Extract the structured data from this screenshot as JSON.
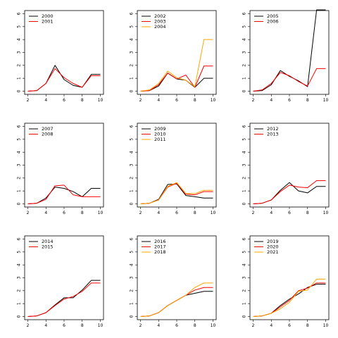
{
  "chart_data": [
    {
      "type": "line",
      "xlim": [
        2,
        10
      ],
      "ylim": [
        0,
        6
      ],
      "xticks": [
        "2",
        "4",
        "6",
        "8",
        "10"
      ],
      "yticks": [
        "0",
        "1",
        "2",
        "3",
        "4",
        "5",
        "6"
      ],
      "legend": "top-left",
      "series": [
        {
          "name": "2000",
          "color": "#000000",
          "x": [
            2,
            3,
            4,
            5,
            6,
            7,
            8,
            9,
            10
          ],
          "y": [
            0,
            0.05,
            0.6,
            2.0,
            0.9,
            0.45,
            0.3,
            1.3,
            1.3
          ]
        },
        {
          "name": "2001",
          "color": "#ff0000",
          "x": [
            2,
            3,
            4,
            5,
            6,
            7,
            8,
            9,
            10
          ],
          "y": [
            0,
            0.05,
            0.6,
            1.75,
            1.05,
            0.6,
            0.3,
            1.2,
            1.2
          ]
        }
      ]
    },
    {
      "type": "line",
      "xlim": [
        2,
        10
      ],
      "ylim": [
        0,
        6
      ],
      "xticks": [
        "2",
        "4",
        "6",
        "8",
        "10"
      ],
      "yticks": [
        "0",
        "1",
        "2",
        "3",
        "4",
        "5",
        "6"
      ],
      "legend": "top-left",
      "series": [
        {
          "name": "2002",
          "color": "#000000",
          "x": [
            2,
            3,
            4,
            5,
            6,
            7,
            8,
            9,
            10
          ],
          "y": [
            0,
            0.05,
            0.4,
            1.4,
            0.95,
            0.85,
            0.3,
            1.0,
            1.0
          ]
        },
        {
          "name": "2003",
          "color": "#ff0000",
          "x": [
            2,
            3,
            4,
            5,
            6,
            7,
            8,
            9,
            10
          ],
          "y": [
            0,
            0.05,
            0.5,
            1.4,
            0.95,
            1.25,
            0.3,
            1.95,
            1.95
          ]
        },
        {
          "name": "2004",
          "color": "#ffa500",
          "x": [
            2,
            3,
            4,
            5,
            6,
            7,
            8,
            9,
            10
          ],
          "y": [
            0,
            0.1,
            0.6,
            1.55,
            1.05,
            0.85,
            0.35,
            4.0,
            4.0
          ]
        }
      ]
    },
    {
      "type": "line",
      "xlim": [
        2,
        10
      ],
      "ylim": [
        0,
        6
      ],
      "xticks": [
        "2",
        "4",
        "6",
        "8",
        "10"
      ],
      "yticks": [
        "0",
        "1",
        "2",
        "3",
        "4",
        "5",
        "6"
      ],
      "legend": "top-left",
      "series": [
        {
          "name": "2005",
          "color": "#000000",
          "x": [
            2,
            3,
            4,
            5,
            6,
            7,
            8,
            9,
            10
          ],
          "y": [
            0,
            0.05,
            0.5,
            1.6,
            1.15,
            0.8,
            0.35,
            6.3,
            6.3
          ]
        },
        {
          "name": "2006",
          "color": "#ff0000",
          "x": [
            2,
            3,
            4,
            5,
            6,
            7,
            8,
            9,
            10
          ],
          "y": [
            0,
            0.1,
            0.6,
            1.45,
            1.2,
            0.75,
            0.4,
            1.75,
            1.75
          ]
        }
      ]
    },
    {
      "type": "line",
      "xlim": [
        2,
        10
      ],
      "ylim": [
        0,
        6
      ],
      "xticks": [
        "2",
        "4",
        "6",
        "8",
        "10"
      ],
      "yticks": [
        "0",
        "1",
        "2",
        "3",
        "4",
        "5",
        "6"
      ],
      "legend": "top-left",
      "series": [
        {
          "name": "2007",
          "color": "#000000",
          "x": [
            2,
            3,
            4,
            5,
            6,
            7,
            8,
            9,
            10
          ],
          "y": [
            0,
            0.05,
            0.45,
            1.3,
            1.2,
            0.95,
            0.55,
            1.2,
            1.2
          ]
        },
        {
          "name": "2008",
          "color": "#ff0000",
          "x": [
            2,
            3,
            4,
            5,
            6,
            7,
            8,
            9,
            10
          ],
          "y": [
            0,
            0.05,
            0.35,
            1.4,
            1.45,
            0.7,
            0.55,
            0.55,
            0.55
          ]
        }
      ]
    },
    {
      "type": "line",
      "xlim": [
        2,
        10
      ],
      "ylim": [
        0,
        6
      ],
      "xticks": [
        "2",
        "4",
        "6",
        "8",
        "10"
      ],
      "yticks": [
        "0",
        "1",
        "2",
        "3",
        "4",
        "5",
        "6"
      ],
      "legend": "top-left",
      "series": [
        {
          "name": "2009",
          "color": "#000000",
          "x": [
            2,
            3,
            4,
            5,
            6,
            7,
            8,
            9,
            10
          ],
          "y": [
            0,
            0.05,
            0.35,
            1.5,
            1.55,
            0.65,
            0.55,
            0.45,
            0.45
          ]
        },
        {
          "name": "2010",
          "color": "#ff0000",
          "x": [
            2,
            3,
            4,
            5,
            6,
            7,
            8,
            9,
            10
          ],
          "y": [
            0,
            0.05,
            0.3,
            1.3,
            1.6,
            0.75,
            0.7,
            0.95,
            0.95
          ]
        },
        {
          "name": "2011",
          "color": "#ffa500",
          "x": [
            2,
            3,
            4,
            5,
            6,
            7,
            8,
            9,
            10
          ],
          "y": [
            0,
            0.05,
            0.3,
            1.35,
            1.65,
            0.8,
            0.8,
            1.05,
            1.05
          ]
        }
      ]
    },
    {
      "type": "line",
      "xlim": [
        2,
        10
      ],
      "ylim": [
        0,
        6
      ],
      "xticks": [
        "2",
        "4",
        "6",
        "8",
        "10"
      ],
      "yticks": [
        "0",
        "1",
        "2",
        "3",
        "4",
        "5",
        "6"
      ],
      "legend": "top-left",
      "series": [
        {
          "name": "2012",
          "color": "#000000",
          "x": [
            2,
            3,
            4,
            5,
            6,
            7,
            8,
            9,
            10
          ],
          "y": [
            0,
            0.05,
            0.3,
            1.05,
            1.65,
            1.0,
            0.85,
            1.35,
            1.35
          ]
        },
        {
          "name": "2013",
          "color": "#ff0000",
          "x": [
            2,
            3,
            4,
            5,
            6,
            7,
            8,
            9,
            10
          ],
          "y": [
            0,
            0.05,
            0.3,
            0.95,
            1.45,
            1.3,
            1.25,
            1.8,
            1.8
          ]
        }
      ]
    },
    {
      "type": "line",
      "xlim": [
        2,
        10
      ],
      "ylim": [
        0,
        6
      ],
      "xticks": [
        "2",
        "4",
        "6",
        "8",
        "10"
      ],
      "yticks": [
        "0",
        "1",
        "2",
        "3",
        "4",
        "5",
        "6"
      ],
      "legend": "top-left",
      "series": [
        {
          "name": "2014",
          "color": "#000000",
          "x": [
            2,
            3,
            4,
            5,
            6,
            7,
            8,
            9,
            10
          ],
          "y": [
            0,
            0.05,
            0.3,
            0.9,
            1.45,
            1.45,
            2.05,
            2.8,
            2.8
          ]
        },
        {
          "name": "2015",
          "color": "#ff0000",
          "x": [
            2,
            3,
            4,
            5,
            6,
            7,
            8,
            9,
            10
          ],
          "y": [
            0,
            0.05,
            0.3,
            0.85,
            1.35,
            1.55,
            1.95,
            2.6,
            2.6
          ]
        }
      ]
    },
    {
      "type": "line",
      "xlim": [
        2,
        10
      ],
      "ylim": [
        0,
        6
      ],
      "xticks": [
        "2",
        "4",
        "6",
        "8",
        "10"
      ],
      "yticks": [
        "0",
        "1",
        "2",
        "3",
        "4",
        "5",
        "6"
      ],
      "legend": "top-left",
      "series": [
        {
          "name": "2016",
          "color": "#000000",
          "x": [
            2,
            3,
            4,
            5,
            6,
            7,
            8,
            9,
            10
          ],
          "y": [
            0,
            0.05,
            0.3,
            0.85,
            1.25,
            1.65,
            1.8,
            1.95,
            1.95
          ]
        },
        {
          "name": "2017",
          "color": "#ff0000",
          "x": [
            2,
            3,
            4,
            5,
            6,
            7,
            8,
            9,
            10
          ],
          "y": [
            0,
            0.05,
            0.3,
            0.85,
            1.25,
            1.65,
            2.05,
            2.25,
            2.25
          ]
        },
        {
          "name": "2018",
          "color": "#ffa500",
          "x": [
            2,
            3,
            4,
            5,
            6,
            7,
            8,
            9,
            10
          ],
          "y": [
            0,
            0.05,
            0.3,
            0.85,
            1.25,
            1.65,
            2.25,
            2.6,
            2.6
          ]
        }
      ]
    },
    {
      "type": "line",
      "xlim": [
        2,
        10
      ],
      "ylim": [
        0,
        6
      ],
      "xticks": [
        "2",
        "4",
        "6",
        "8",
        "10"
      ],
      "yticks": [
        "0",
        "1",
        "2",
        "3",
        "4",
        "5",
        "6"
      ],
      "legend": "top-left",
      "series": [
        {
          "name": "2019",
          "color": "#000000",
          "x": [
            2,
            3,
            4,
            5,
            6,
            7,
            8,
            9,
            10
          ],
          "y": [
            0,
            0.05,
            0.25,
            0.85,
            1.35,
            1.75,
            2.25,
            2.5,
            2.5
          ]
        },
        {
          "name": "2020",
          "color": "#ff0000",
          "x": [
            2,
            3,
            4,
            5,
            6,
            7,
            8,
            9,
            10
          ],
          "y": [
            0,
            0.05,
            0.25,
            0.75,
            1.25,
            2.0,
            2.2,
            2.6,
            2.6
          ]
        },
        {
          "name": "2021",
          "color": "#ffa500",
          "x": [
            2,
            3,
            4,
            5,
            6,
            7,
            8,
            9,
            10
          ],
          "y": [
            0,
            0.05,
            0.25,
            0.6,
            1.1,
            1.95,
            2.05,
            2.9,
            2.9
          ]
        }
      ]
    }
  ]
}
